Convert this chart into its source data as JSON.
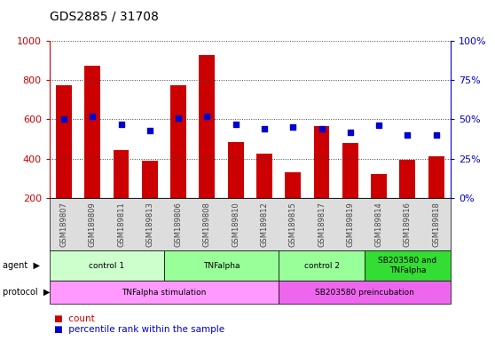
{
  "title": "GDS2885 / 31708",
  "samples": [
    "GSM189807",
    "GSM189809",
    "GSM189811",
    "GSM189813",
    "GSM189806",
    "GSM189808",
    "GSM189810",
    "GSM189812",
    "GSM189815",
    "GSM189817",
    "GSM189819",
    "GSM189814",
    "GSM189816",
    "GSM189818"
  ],
  "counts": [
    775,
    875,
    445,
    390,
    775,
    930,
    485,
    425,
    330,
    565,
    480,
    320,
    395,
    410
  ],
  "percentiles": [
    50,
    52,
    47,
    43,
    51,
    52,
    47,
    44,
    45,
    44,
    42,
    46,
    40,
    40
  ],
  "ylim_left": [
    200,
    1000
  ],
  "ylim_right": [
    0,
    100
  ],
  "yticks_left": [
    200,
    400,
    600,
    800,
    1000
  ],
  "yticks_right": [
    0,
    25,
    50,
    75,
    100
  ],
  "bar_color": "#CC0000",
  "dot_color": "#0000CC",
  "agent_groups": [
    {
      "label": "control 1",
      "start": 0,
      "end": 4,
      "color": "#CCFFCC"
    },
    {
      "label": "TNFalpha",
      "start": 4,
      "end": 8,
      "color": "#99FF99"
    },
    {
      "label": "control 2",
      "start": 8,
      "end": 11,
      "color": "#99FF99"
    },
    {
      "label": "SB203580 and\nTNFalpha",
      "start": 11,
      "end": 14,
      "color": "#33DD33"
    }
  ],
  "protocol_groups": [
    {
      "label": "TNFalpha stimulation",
      "start": 0,
      "end": 8,
      "color": "#FF99FF"
    },
    {
      "label": "SB203580 preincubation",
      "start": 8,
      "end": 14,
      "color": "#EE66EE"
    }
  ],
  "xlabel_color": "#444444",
  "left_axis_color": "#CC0000",
  "right_axis_color": "#0000CC",
  "grid_color": "#444444",
  "legend_count_color": "#CC0000",
  "legend_dot_color": "#0000CC"
}
